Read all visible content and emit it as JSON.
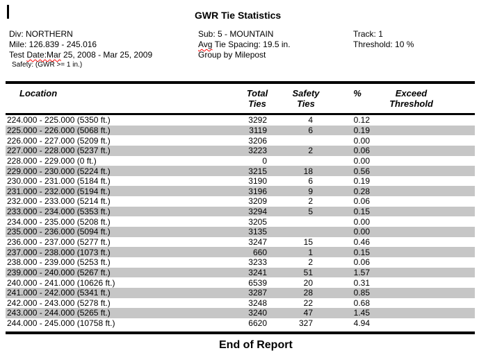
{
  "page": {
    "title": "GWR Tie Statistics",
    "footer": "End of Report"
  },
  "info": {
    "left": {
      "division": "Div: NORTHERN",
      "mile": "Mile: 126.839 - 245.016",
      "test_date_prefix": "Test ",
      "test_date_misspelled": "Date:Mar",
      "test_date_suffix": " 25, 2008 - Mar 25, 2009",
      "safety": "Safety: (GWR >= 1 in.)"
    },
    "middle": {
      "sub": "Sub: 5 - MOUNTAIN",
      "spacing_misspelled": "Avg",
      "spacing_suffix": " Tie Spacing: 19.5 in.",
      "group": "Group by Milepost"
    },
    "right": {
      "track": "Track: 1",
      "threshold": "Threshold: 10 %"
    }
  },
  "table": {
    "columns": {
      "location": "Location",
      "total": [
        "Total",
        "Ties"
      ],
      "safety": [
        "Safety",
        "Ties"
      ],
      "percent": "%",
      "exceed": [
        "Exceed",
        "Threshold"
      ]
    },
    "rows": [
      {
        "location": "224.000 - 225.000 (5350 ft.)",
        "total": "3292",
        "safety": "4",
        "percent": "0.12",
        "exceed": ""
      },
      {
        "location": "225.000 - 226.000 (5068 ft.)",
        "total": "3119",
        "safety": "6",
        "percent": "0.19",
        "exceed": ""
      },
      {
        "location": "226.000 - 227.000 (5209 ft.)",
        "total": "3206",
        "safety": "",
        "percent": "0.00",
        "exceed": ""
      },
      {
        "location": "227.000 - 228.000 (5237 ft.)",
        "total": "3223",
        "safety": "2",
        "percent": "0.06",
        "exceed": ""
      },
      {
        "location": "228.000 - 229.000 (0 ft.)",
        "total": "0",
        "safety": "",
        "percent": "0.00",
        "exceed": ""
      },
      {
        "location": "229.000 - 230.000 (5224 ft.)",
        "total": "3215",
        "safety": "18",
        "percent": "0.56",
        "exceed": ""
      },
      {
        "location": "230.000 - 231.000 (5184 ft.)",
        "total": "3190",
        "safety": "6",
        "percent": "0.19",
        "exceed": ""
      },
      {
        "location": "231.000 - 232.000 (5194 ft.)",
        "total": "3196",
        "safety": "9",
        "percent": "0.28",
        "exceed": ""
      },
      {
        "location": "232.000 - 233.000 (5214 ft.)",
        "total": "3209",
        "safety": "2",
        "percent": "0.06",
        "exceed": ""
      },
      {
        "location": "233.000 - 234.000 (5353 ft.)",
        "total": "3294",
        "safety": "5",
        "percent": "0.15",
        "exceed": ""
      },
      {
        "location": "234.000 - 235.000 (5208 ft.)",
        "total": "3205",
        "safety": "",
        "percent": "0.00",
        "exceed": ""
      },
      {
        "location": "235.000 - 236.000 (5094 ft.)",
        "total": "3135",
        "safety": "",
        "percent": "0.00",
        "exceed": ""
      },
      {
        "location": "236.000 - 237.000 (5277 ft.)",
        "total": "3247",
        "safety": "15",
        "percent": "0.46",
        "exceed": ""
      },
      {
        "location": "237.000 - 238.000 (1073 ft.)",
        "total": "660",
        "safety": "1",
        "percent": "0.15",
        "exceed": ""
      },
      {
        "location": "238.000 - 239.000 (5253 ft.)",
        "total": "3233",
        "safety": "2",
        "percent": "0.06",
        "exceed": ""
      },
      {
        "location": "239.000 - 240.000 (5267 ft.)",
        "total": "3241",
        "safety": "51",
        "percent": "1.57",
        "exceed": ""
      },
      {
        "location": "240.000 - 241.000 (10626 ft.)",
        "total": "6539",
        "safety": "20",
        "percent": "0.31",
        "exceed": ""
      },
      {
        "location": "241.000 - 242.000 (5341 ft.)",
        "total": "3287",
        "safety": "28",
        "percent": "0.85",
        "exceed": ""
      },
      {
        "location": "242.000 - 243.000 (5278 ft.)",
        "total": "3248",
        "safety": "22",
        "percent": "0.68",
        "exceed": ""
      },
      {
        "location": "243.000 - 244.000 (5265 ft.)",
        "total": "3240",
        "safety": "47",
        "percent": "1.45",
        "exceed": ""
      },
      {
        "location": "244.000 - 245.000 (10758 ft.)",
        "total": "6620",
        "safety": "327",
        "percent": "4.94",
        "exceed": ""
      }
    ]
  },
  "colors": {
    "row_alt": "#c6c6c6",
    "misspell_underline": "#ff0000",
    "rule": "#000000"
  }
}
